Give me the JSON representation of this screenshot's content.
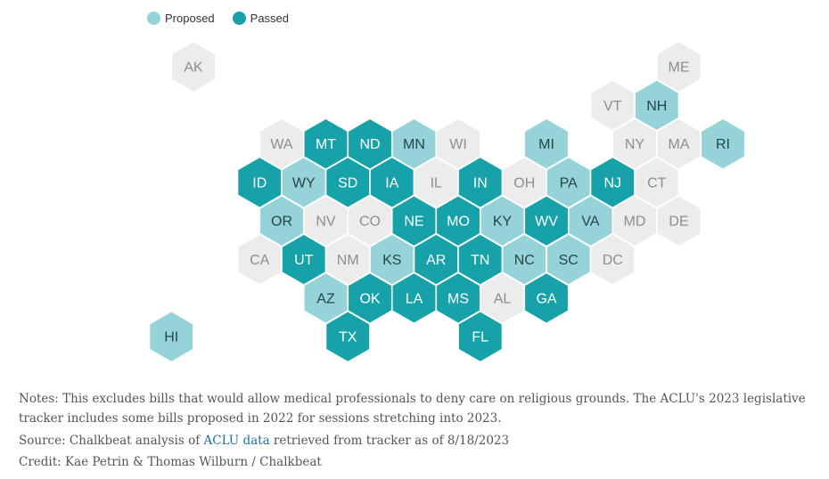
{
  "legend": [
    {
      "label": "Proposed",
      "color": "#96d3d8"
    },
    {
      "label": "Passed",
      "color": "#17a2a9"
    }
  ],
  "colors": {
    "none": "#ececec",
    "none_text": "#8d8d8d",
    "proposed": "#96d3d8",
    "proposed_text": "#26444a",
    "passed": "#17a2a9",
    "passed_text": "#ffffff"
  },
  "states": [
    {
      "code": "AK",
      "status": "none"
    },
    {
      "code": "ME",
      "status": "none"
    },
    {
      "code": "VT",
      "status": "none"
    },
    {
      "code": "NH",
      "status": "proposed"
    },
    {
      "code": "WA",
      "status": "none"
    },
    {
      "code": "MT",
      "status": "passed"
    },
    {
      "code": "ND",
      "status": "passed"
    },
    {
      "code": "MN",
      "status": "proposed"
    },
    {
      "code": "WI",
      "status": "none"
    },
    {
      "code": "MI",
      "status": "proposed"
    },
    {
      "code": "NY",
      "status": "none"
    },
    {
      "code": "MA",
      "status": "none"
    },
    {
      "code": "RI",
      "status": "proposed"
    },
    {
      "code": "ID",
      "status": "passed"
    },
    {
      "code": "WY",
      "status": "proposed"
    },
    {
      "code": "SD",
      "status": "passed"
    },
    {
      "code": "IA",
      "status": "passed"
    },
    {
      "code": "IL",
      "status": "none"
    },
    {
      "code": "IN",
      "status": "passed"
    },
    {
      "code": "OH",
      "status": "none"
    },
    {
      "code": "PA",
      "status": "proposed"
    },
    {
      "code": "NJ",
      "status": "passed"
    },
    {
      "code": "CT",
      "status": "none"
    },
    {
      "code": "OR",
      "status": "proposed"
    },
    {
      "code": "NV",
      "status": "none"
    },
    {
      "code": "CO",
      "status": "none"
    },
    {
      "code": "NE",
      "status": "passed"
    },
    {
      "code": "MO",
      "status": "passed"
    },
    {
      "code": "KY",
      "status": "proposed"
    },
    {
      "code": "WV",
      "status": "passed"
    },
    {
      "code": "VA",
      "status": "proposed"
    },
    {
      "code": "MD",
      "status": "none"
    },
    {
      "code": "DE",
      "status": "none"
    },
    {
      "code": "CA",
      "status": "none"
    },
    {
      "code": "UT",
      "status": "passed"
    },
    {
      "code": "NM",
      "status": "none"
    },
    {
      "code": "KS",
      "status": "proposed"
    },
    {
      "code": "AR",
      "status": "passed"
    },
    {
      "code": "TN",
      "status": "passed"
    },
    {
      "code": "NC",
      "status": "proposed"
    },
    {
      "code": "SC",
      "status": "proposed"
    },
    {
      "code": "DC",
      "status": "none"
    },
    {
      "code": "AZ",
      "status": "proposed"
    },
    {
      "code": "OK",
      "status": "passed"
    },
    {
      "code": "LA",
      "status": "passed"
    },
    {
      "code": "MS",
      "status": "passed"
    },
    {
      "code": "AL",
      "status": "none"
    },
    {
      "code": "GA",
      "status": "passed"
    },
    {
      "code": "HI",
      "status": "proposed"
    },
    {
      "code": "TX",
      "status": "passed"
    },
    {
      "code": "FL",
      "status": "passed"
    }
  ],
  "notes": {
    "text": "Notes: This excludes bills that would allow medical professionals to deny care on religious grounds. The ACLU's 2023 legislative tracker includes some bills proposed in 2022 for sessions stretching into 2023.",
    "source_prefix": "Source: Chalkbeat analysis of ",
    "source_link": "ACLU data",
    "source_suffix": " retrieved from tracker as of 8/18/2023",
    "credit": "Credit: Kae Petrin & Thomas Wilburn / Chalkbeat"
  }
}
